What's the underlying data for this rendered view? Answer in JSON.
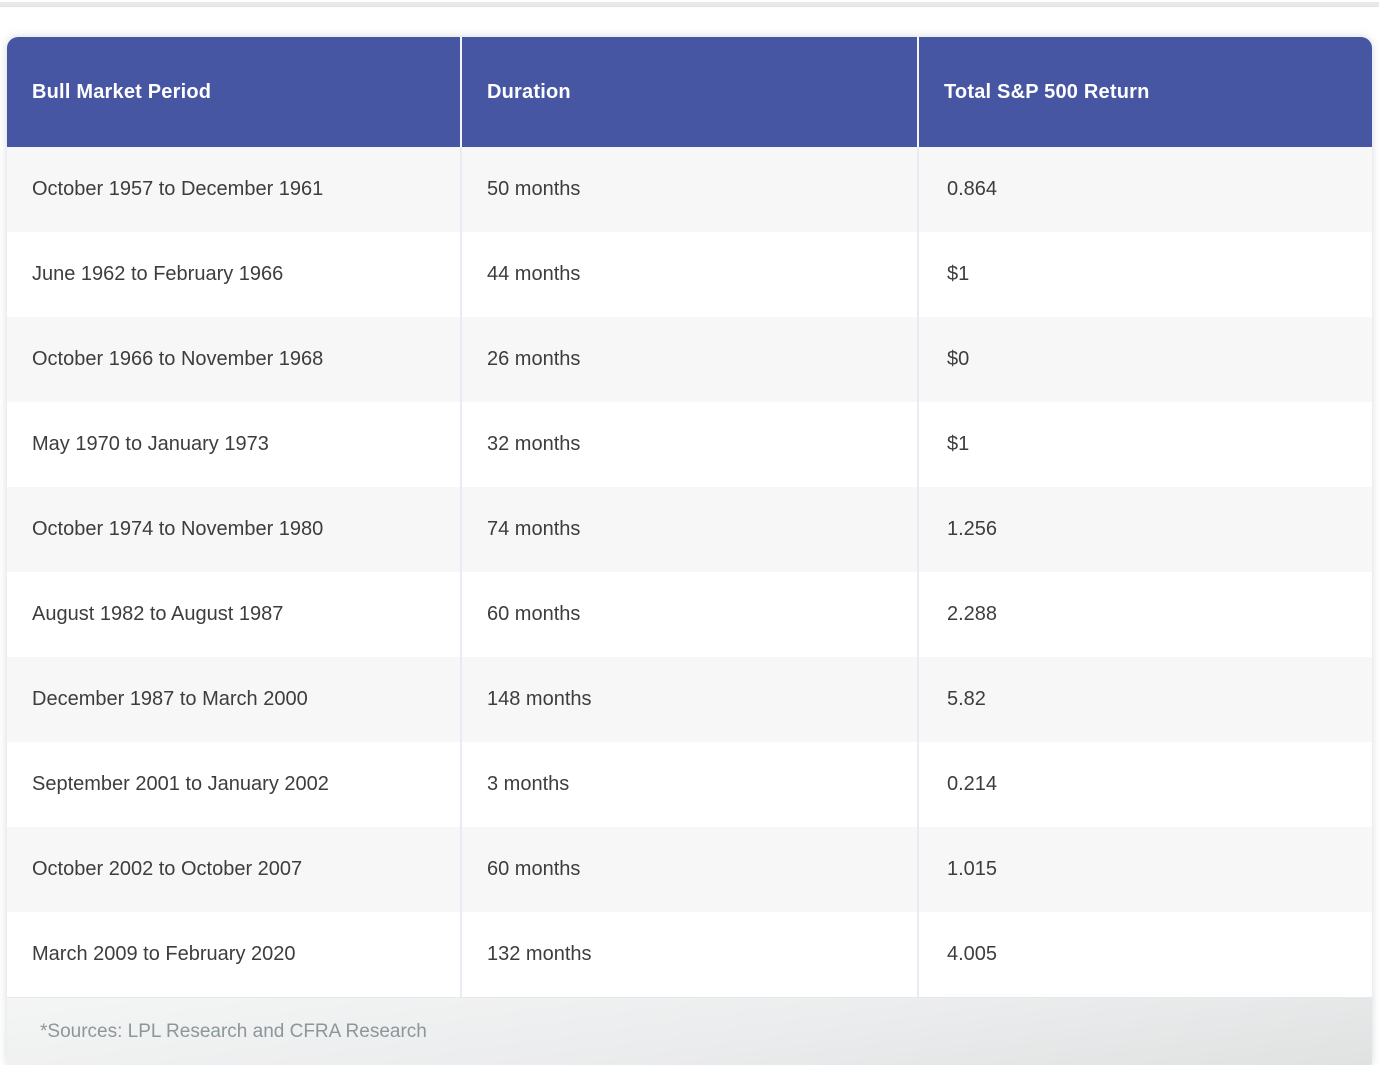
{
  "chart_data": {
    "type": "table",
    "columns": [
      "Bull Market Period",
      "Duration",
      "Total S&P 500 Return"
    ],
    "rows": [
      {
        "period": "October 1957 to December 1961",
        "duration": "50 months",
        "return": "0.864"
      },
      {
        "period": "June 1962 to February 1966",
        "duration": "44 months",
        "return": "$1"
      },
      {
        "period": "October 1966 to November 1968",
        "duration": "26 months",
        "return": "$0"
      },
      {
        "period": "May 1970 to January 1973",
        "duration": "32 months",
        "return": "$1"
      },
      {
        "period": "October 1974 to November 1980",
        "duration": "74 months",
        "return": "1.256"
      },
      {
        "period": "August 1982 to August 1987",
        "duration": "60 months",
        "return": "2.288"
      },
      {
        "period": "December 1987 to March 2000",
        "duration": "148 months",
        "return": "5.82"
      },
      {
        "period": "September 2001 to January 2002",
        "duration": "3 months",
        "return": "0.214"
      },
      {
        "period": "October 2002 to October 2007",
        "duration": "60 months",
        "return": "1.015"
      },
      {
        "period": "March 2009 to February 2020",
        "duration": "132 months",
        "return": "4.005"
      }
    ],
    "footnote": "*Sources: LPL Research and CFRA Research"
  },
  "colors": {
    "header_bg": "#4656A3",
    "header_text": "#FFFFFF",
    "row_bg": "#FFFFFF",
    "row_alt_bg": "#F7F7F7",
    "body_text": "#3D3D3D",
    "divider": "#E8ECF2",
    "footer_text": "#8C969B"
  }
}
